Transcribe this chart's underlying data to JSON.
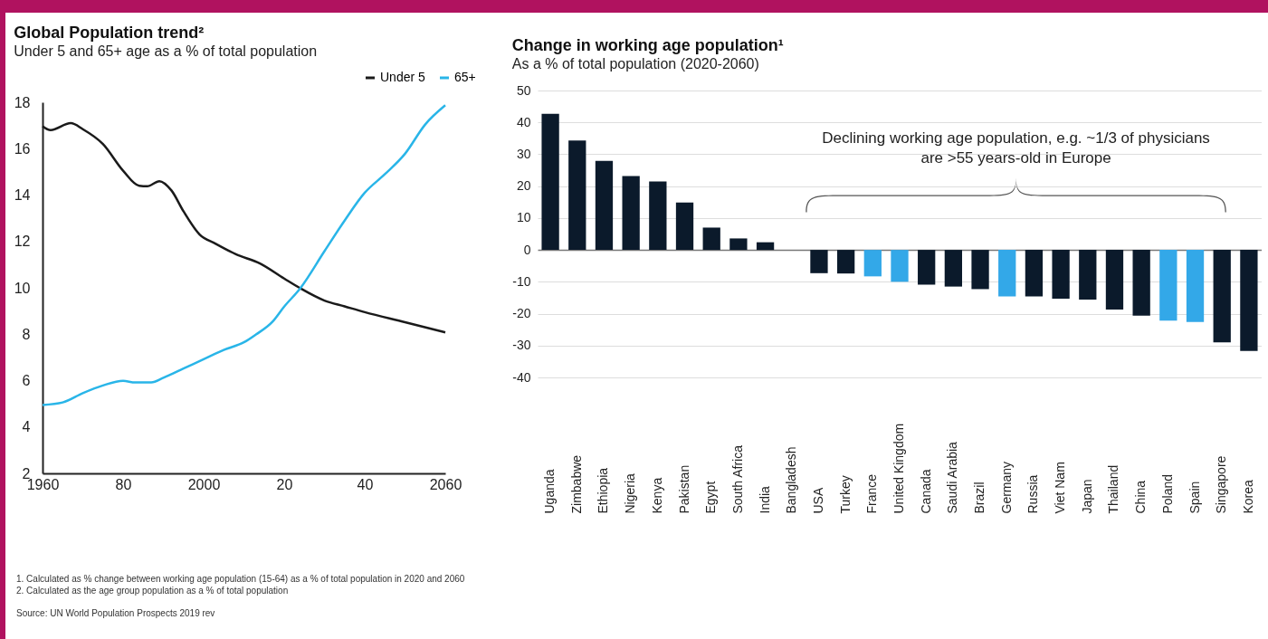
{
  "chart_data": [
    {
      "type": "line",
      "title": "Global Population trend²",
      "subtitle": "Under 5 and 65+ age as a % of total population",
      "series": [
        {
          "name": "Under 5",
          "color": "#1a1a1a",
          "x": [
            1960,
            1962,
            1967,
            1970,
            1975,
            1980,
            1984,
            1986,
            1989,
            1992,
            1995,
            1999,
            2003,
            2008,
            2014,
            2020,
            2024,
            2030,
            2035,
            2040,
            2050,
            2060
          ],
          "values": [
            16.97,
            16.8,
            17.1,
            16.84,
            16.2,
            15.05,
            14.4,
            14.38,
            14.6,
            14.2,
            13.3,
            12.3,
            11.9,
            11.45,
            11.05,
            10.4,
            9.98,
            9.45,
            9.2,
            8.95,
            8.52,
            8.08
          ]
        },
        {
          "name": "65+",
          "color": "#29b5e8",
          "x": [
            1960,
            1965,
            1970,
            1975,
            1980,
            1983,
            1987,
            1990,
            1995,
            2000,
            2005,
            2010,
            2013,
            2017,
            2020,
            2024,
            2030,
            2035,
            2040,
            2045,
            2050,
            2055,
            2060
          ],
          "values": [
            4.95,
            5.06,
            5.46,
            5.79,
            5.99,
            5.92,
            5.92,
            6.12,
            6.52,
            6.92,
            7.32,
            7.65,
            7.99,
            8.52,
            9.19,
            9.98,
            11.58,
            12.9,
            14.1,
            14.9,
            15.78,
            17.04,
            17.87
          ]
        }
      ],
      "xlim": [
        1960,
        2060
      ],
      "xticks": [
        1960,
        {
          "value": 1980,
          "label": "80"
        },
        2000,
        {
          "value": 2020,
          "label": "20"
        },
        {
          "value": 2040,
          "label": "40"
        },
        2060
      ],
      "ylim": [
        2,
        18
      ],
      "yticks": [
        2,
        4,
        6,
        8,
        10,
        12,
        14,
        16,
        18
      ],
      "grid": false,
      "legend": "top right",
      "annotations": [
        "1.    Calculated as % change between working age population (15-64) as a % of total population in 2020 and 2060",
        "2.    Calculated as the age group population as a % of total population",
        "Source: UN World Population Prospects 2019 rev"
      ]
    },
    {
      "type": "bar",
      "title": "Change in working age population¹",
      "subtitle": "As a % of total population (2020-2060)",
      "categories": [
        "Uganda",
        "Zimbabwe",
        "Ethiopia",
        "Nigeria",
        "Kenya",
        "Pakistan",
        "Egypt",
        "South Africa",
        "India",
        "Bangladesh",
        "USA",
        "Turkey",
        "France",
        "United Kingdom",
        "Canada",
        "Saudi Arabia",
        "Brazil",
        "Germany",
        "Russia",
        "Viet Nam",
        "Japan",
        "Thailand",
        "China",
        "Poland",
        "Spain",
        "Singapore",
        "Korea"
      ],
      "values": [
        42.7,
        34.3,
        27.9,
        23.2,
        21.5,
        14.9,
        7.0,
        3.6,
        2.4,
        0,
        -7.3,
        -7.4,
        -8.3,
        -10.0,
        -10.9,
        -11.5,
        -12.3,
        -14.6,
        -14.6,
        -15.3,
        -15.6,
        -18.7,
        -20.6,
        -22.2,
        -22.6,
        -29.0,
        -31.7
      ],
      "colors": [
        "#0b1a2b",
        "#0b1a2b",
        "#0b1a2b",
        "#0b1a2b",
        "#0b1a2b",
        "#0b1a2b",
        "#0b1a2b",
        "#0b1a2b",
        "#0b1a2b",
        "#0b1a2b",
        "#0b1a2b",
        "#0b1a2b",
        "#33a8e8",
        "#33a8e8",
        "#0b1a2b",
        "#0b1a2b",
        "#0b1a2b",
        "#33a8e8",
        "#0b1a2b",
        "#0b1a2b",
        "#0b1a2b",
        "#0b1a2b",
        "#0b1a2b",
        "#33a8e8",
        "#33a8e8",
        "#0b1a2b",
        "#0b1a2b"
      ],
      "ylim": [
        -40,
        50
      ],
      "yticks": [
        -40,
        -30,
        -20,
        -10,
        0,
        10,
        20,
        30,
        40,
        50
      ],
      "grid": "y",
      "annotations": [
        "Declining working age population, e.g. ~1/3 of physicians are >55 years-old in Europe"
      ]
    }
  ]
}
